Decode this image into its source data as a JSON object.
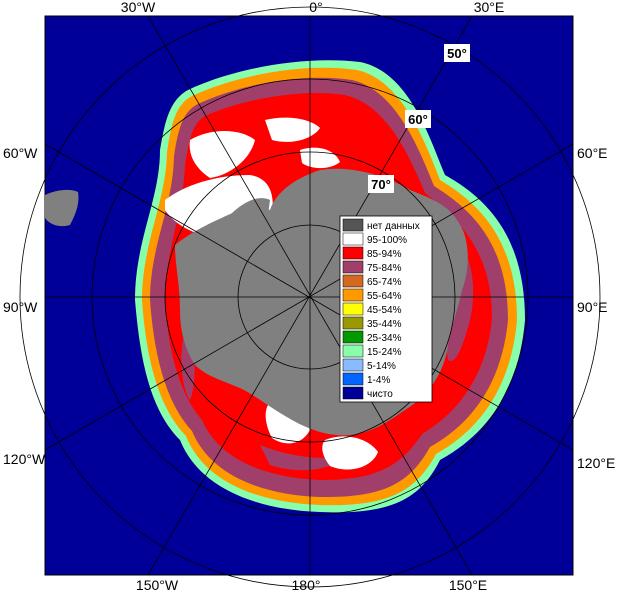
{
  "map": {
    "longitude_labels": {
      "top": [
        "30°W",
        "0°",
        "30°E"
      ],
      "bottom": [
        "150°W",
        "180°",
        "150°E"
      ],
      "left": [
        "60°W",
        "90°W",
        "120°W"
      ],
      "right": [
        "60°E",
        "90°E",
        "120°E"
      ]
    },
    "latitude_labels": [
      "50°",
      "60°",
      "70°"
    ]
  },
  "legend": {
    "items": [
      {
        "label": "нет данных",
        "color": "#555555"
      },
      {
        "label": "95-100%",
        "color": "#ffffff"
      },
      {
        "label": "85-94%",
        "color": "#ff0000"
      },
      {
        "label": "75-84%",
        "color": "#a0406a"
      },
      {
        "label": "65-74%",
        "color": "#d2691e"
      },
      {
        "label": "55-64%",
        "color": "#ff9900"
      },
      {
        "label": "45-54%",
        "color": "#ffff00"
      },
      {
        "label": "35-44%",
        "color": "#999900"
      },
      {
        "label": "25-34%",
        "color": "#009900"
      },
      {
        "label": "15-24%",
        "color": "#88ffaa"
      },
      {
        "label": "5-14%",
        "color": "#88bbff"
      },
      {
        "label": "1-4%",
        "color": "#0066ff"
      },
      {
        "label": "чисто",
        "color": "#000099"
      }
    ]
  },
  "colors": {
    "ocean": "#000099",
    "land": "#808080",
    "grid": "#000000"
  }
}
